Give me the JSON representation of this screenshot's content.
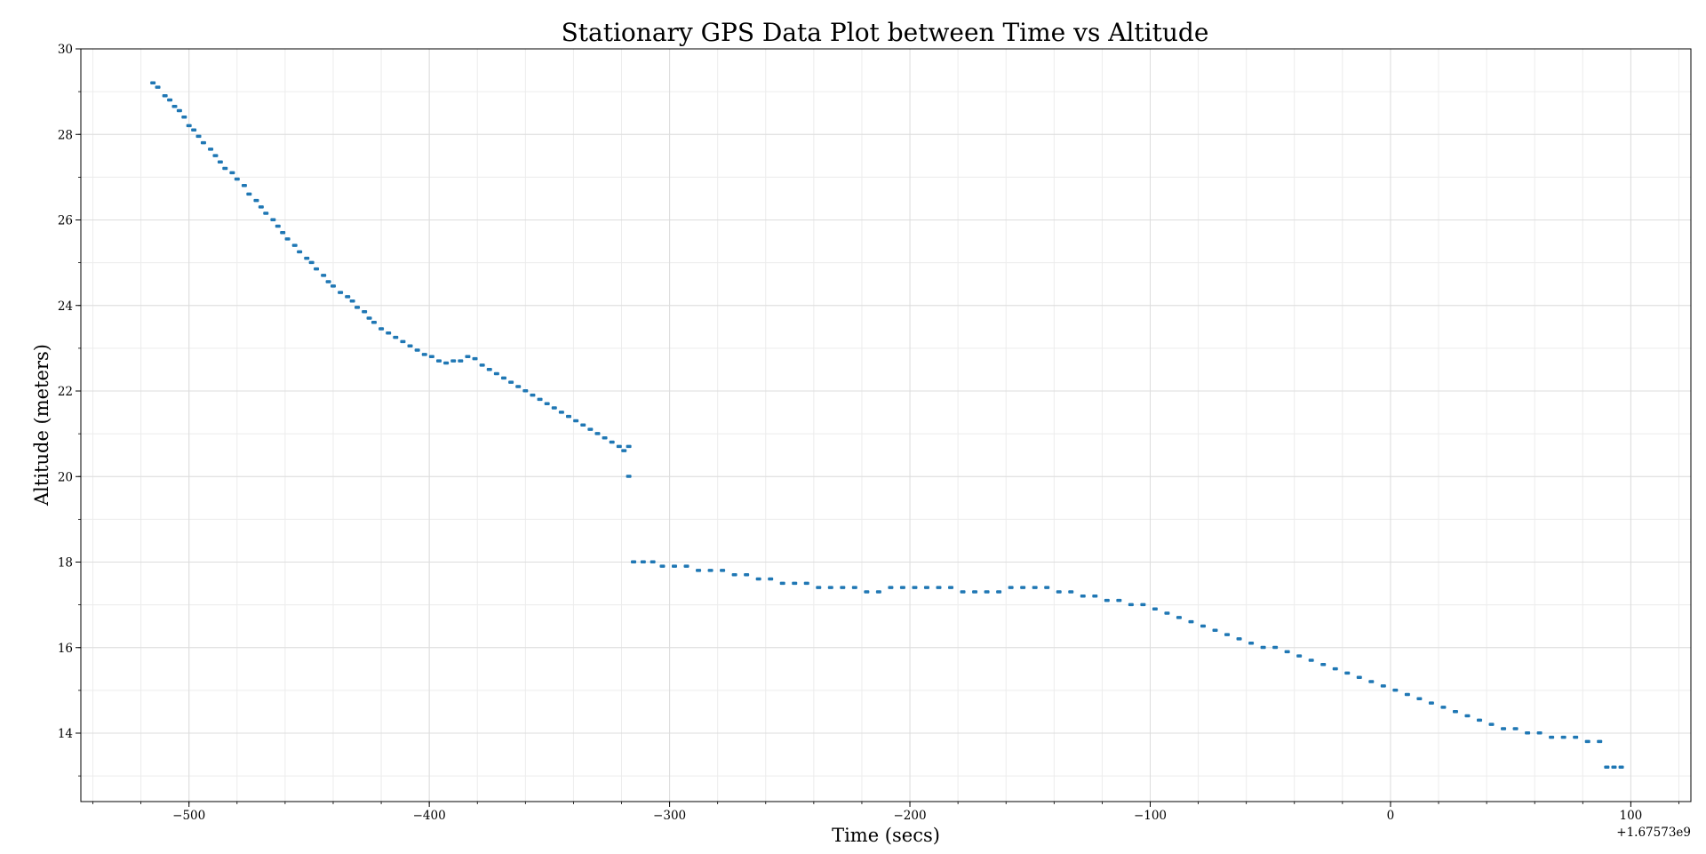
{
  "chart_data": {
    "type": "scatter",
    "title": "Stationary GPS Data Plot between Time vs Altitude",
    "xlabel": "Time (secs)",
    "ylabel": "Altitude (meters)",
    "x_offset_label": "+1.67573e9",
    "xlim": [
      -545,
      125
    ],
    "ylim": [
      12.4,
      30
    ],
    "xticks": [
      -500,
      -400,
      -300,
      -200,
      -100,
      0,
      100
    ],
    "yticks": [
      14,
      16,
      18,
      20,
      22,
      24,
      26,
      28,
      30
    ],
    "grid": true,
    "marker_color": "#1f77b4",
    "series": [
      {
        "points": [
          [
            -515,
            29.2
          ],
          [
            -513,
            29.1
          ],
          [
            -510,
            28.9
          ],
          [
            -508,
            28.8
          ],
          [
            -506,
            28.65
          ],
          [
            -504,
            28.55
          ],
          [
            -502,
            28.4
          ],
          [
            -500,
            28.2
          ],
          [
            -498,
            28.1
          ],
          [
            -496,
            27.95
          ],
          [
            -494,
            27.8
          ],
          [
            -491,
            27.65
          ],
          [
            -489,
            27.5
          ],
          [
            -487,
            27.35
          ],
          [
            -485,
            27.2
          ],
          [
            -482,
            27.1
          ],
          [
            -480,
            26.95
          ],
          [
            -477,
            26.8
          ],
          [
            -475,
            26.6
          ],
          [
            -472,
            26.45
          ],
          [
            -470,
            26.3
          ],
          [
            -468,
            26.15
          ],
          [
            -465,
            26.0
          ],
          [
            -463,
            25.85
          ],
          [
            -461,
            25.7
          ],
          [
            -459,
            25.55
          ],
          [
            -456,
            25.4
          ],
          [
            -454,
            25.25
          ],
          [
            -451,
            25.1
          ],
          [
            -449,
            25.0
          ],
          [
            -447,
            24.85
          ],
          [
            -444,
            24.7
          ],
          [
            -442,
            24.55
          ],
          [
            -440,
            24.45
          ],
          [
            -437,
            24.3
          ],
          [
            -434,
            24.2
          ],
          [
            -432,
            24.1
          ],
          [
            -430,
            23.95
          ],
          [
            -427,
            23.85
          ],
          [
            -425,
            23.7
          ],
          [
            -423,
            23.6
          ],
          [
            -420,
            23.45
          ],
          [
            -417,
            23.35
          ],
          [
            -414,
            23.25
          ],
          [
            -411,
            23.15
          ],
          [
            -408,
            23.05
          ],
          [
            -405,
            22.95
          ],
          [
            -402,
            22.85
          ],
          [
            -399,
            22.8
          ],
          [
            -396,
            22.7
          ],
          [
            -393,
            22.65
          ],
          [
            -390,
            22.7
          ],
          [
            -387,
            22.7
          ],
          [
            -384,
            22.8
          ],
          [
            -381,
            22.75
          ],
          [
            -378,
            22.6
          ],
          [
            -375,
            22.5
          ],
          [
            -372,
            22.4
          ],
          [
            -369,
            22.3
          ],
          [
            -366,
            22.2
          ],
          [
            -363,
            22.1
          ],
          [
            -360,
            22.0
          ],
          [
            -357,
            21.9
          ],
          [
            -354,
            21.8
          ],
          [
            -351,
            21.7
          ],
          [
            -348,
            21.6
          ],
          [
            -345,
            21.5
          ],
          [
            -342,
            21.4
          ],
          [
            -339,
            21.3
          ],
          [
            -336,
            21.2
          ],
          [
            -333,
            21.1
          ],
          [
            -330,
            21.0
          ],
          [
            -327,
            20.9
          ],
          [
            -324,
            20.8
          ],
          [
            -321,
            20.7
          ],
          [
            -319,
            20.6
          ],
          [
            -317,
            20.7
          ],
          [
            -317,
            20.0
          ],
          [
            -315,
            18.0
          ],
          [
            -311,
            18.0
          ],
          [
            -307,
            18.0
          ],
          [
            -303,
            17.9
          ],
          [
            -298,
            17.9
          ],
          [
            -293,
            17.9
          ],
          [
            -288,
            17.8
          ],
          [
            -283,
            17.8
          ],
          [
            -278,
            17.8
          ],
          [
            -273,
            17.7
          ],
          [
            -268,
            17.7
          ],
          [
            -263,
            17.6
          ],
          [
            -258,
            17.6
          ],
          [
            -253,
            17.5
          ],
          [
            -248,
            17.5
          ],
          [
            -243,
            17.5
          ],
          [
            -238,
            17.4
          ],
          [
            -233,
            17.4
          ],
          [
            -228,
            17.4
          ],
          [
            -223,
            17.4
          ],
          [
            -218,
            17.3
          ],
          [
            -213,
            17.3
          ],
          [
            -208,
            17.4
          ],
          [
            -203,
            17.4
          ],
          [
            -198,
            17.4
          ],
          [
            -193,
            17.4
          ],
          [
            -188,
            17.4
          ],
          [
            -183,
            17.4
          ],
          [
            -178,
            17.3
          ],
          [
            -173,
            17.3
          ],
          [
            -168,
            17.3
          ],
          [
            -163,
            17.3
          ],
          [
            -158,
            17.4
          ],
          [
            -153,
            17.4
          ],
          [
            -148,
            17.4
          ],
          [
            -143,
            17.4
          ],
          [
            -138,
            17.3
          ],
          [
            -133,
            17.3
          ],
          [
            -128,
            17.2
          ],
          [
            -123,
            17.2
          ],
          [
            -118,
            17.1
          ],
          [
            -113,
            17.1
          ],
          [
            -108,
            17.0
          ],
          [
            -103,
            17.0
          ],
          [
            -98,
            16.9
          ],
          [
            -93,
            16.8
          ],
          [
            -88,
            16.7
          ],
          [
            -83,
            16.6
          ],
          [
            -78,
            16.5
          ],
          [
            -73,
            16.4
          ],
          [
            -68,
            16.3
          ],
          [
            -63,
            16.2
          ],
          [
            -58,
            16.1
          ],
          [
            -53,
            16.0
          ],
          [
            -48,
            16.0
          ],
          [
            -43,
            15.9
          ],
          [
            -38,
            15.8
          ],
          [
            -33,
            15.7
          ],
          [
            -28,
            15.6
          ],
          [
            -23,
            15.5
          ],
          [
            -18,
            15.4
          ],
          [
            -13,
            15.3
          ],
          [
            -8,
            15.2
          ],
          [
            -3,
            15.1
          ],
          [
            2,
            15.0
          ],
          [
            7,
            14.9
          ],
          [
            12,
            14.8
          ],
          [
            17,
            14.7
          ],
          [
            22,
            14.6
          ],
          [
            27,
            14.5
          ],
          [
            32,
            14.4
          ],
          [
            37,
            14.3
          ],
          [
            42,
            14.2
          ],
          [
            47,
            14.1
          ],
          [
            52,
            14.1
          ],
          [
            57,
            14.0
          ],
          [
            62,
            14.0
          ],
          [
            67,
            13.9
          ],
          [
            72,
            13.9
          ],
          [
            77,
            13.9
          ],
          [
            82,
            13.8
          ],
          [
            87,
            13.8
          ],
          [
            90,
            13.2
          ],
          [
            93,
            13.2
          ],
          [
            96,
            13.2
          ]
        ]
      }
    ]
  }
}
